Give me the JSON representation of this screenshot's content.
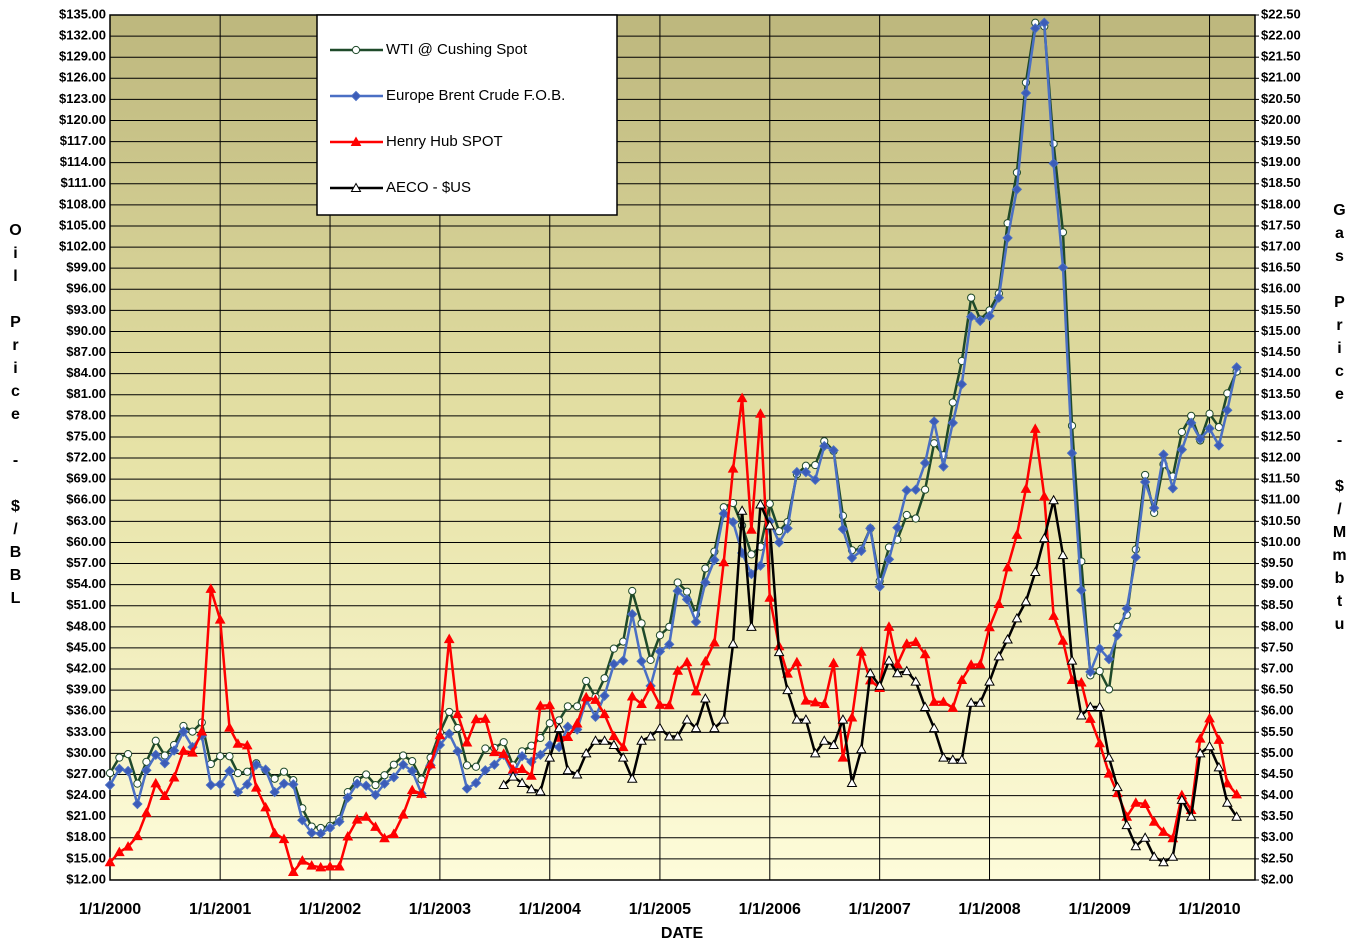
{
  "chart_data": {
    "type": "line",
    "x_label": "DATE",
    "y_label": "Oil Price - $/BBL",
    "y2_label": "Gas Price - $/Mmbtu",
    "xlim": [
      "2000-01-01",
      "2010-06-01"
    ],
    "xticks": [
      {
        "value": "2000-01-01",
        "label": "1/1/2000"
      },
      {
        "value": "2001-01-01",
        "label": "1/1/2001"
      },
      {
        "value": "2002-01-01",
        "label": "1/1/2002"
      },
      {
        "value": "2003-01-01",
        "label": "1/1/2003"
      },
      {
        "value": "2004-01-01",
        "label": "1/1/2004"
      },
      {
        "value": "2005-01-01",
        "label": "1/1/2005"
      },
      {
        "value": "2006-01-01",
        "label": "1/1/2006"
      },
      {
        "value": "2007-01-01",
        "label": "1/1/2007"
      },
      {
        "value": "2008-01-01",
        "label": "1/1/2008"
      },
      {
        "value": "2009-01-01",
        "label": "1/1/2009"
      },
      {
        "value": "2010-01-01",
        "label": "1/1/2010"
      }
    ],
    "ylim": [
      12,
      135
    ],
    "yticks": [
      {
        "value": 12,
        "label": "$12.00"
      },
      {
        "value": 15,
        "label": "$15.00"
      },
      {
        "value": 18,
        "label": "$18.00"
      },
      {
        "value": 21,
        "label": "$21.00"
      },
      {
        "value": 24,
        "label": "$24.00"
      },
      {
        "value": 27,
        "label": "$27.00"
      },
      {
        "value": 30,
        "label": "$30.00"
      },
      {
        "value": 33,
        "label": "$33.00"
      },
      {
        "value": 36,
        "label": "$36.00"
      },
      {
        "value": 39,
        "label": "$39.00"
      },
      {
        "value": 42,
        "label": "$42.00"
      },
      {
        "value": 45,
        "label": "$45.00"
      },
      {
        "value": 48,
        "label": "$48.00"
      },
      {
        "value": 51,
        "label": "$51.00"
      },
      {
        "value": 54,
        "label": "$54.00"
      },
      {
        "value": 57,
        "label": "$57.00"
      },
      {
        "value": 60,
        "label": "$60.00"
      },
      {
        "value": 63,
        "label": "$63.00"
      },
      {
        "value": 66,
        "label": "$66.00"
      },
      {
        "value": 69,
        "label": "$69.00"
      },
      {
        "value": 72,
        "label": "$72.00"
      },
      {
        "value": 75,
        "label": "$75.00"
      },
      {
        "value": 78,
        "label": "$78.00"
      },
      {
        "value": 81,
        "label": "$81.00"
      },
      {
        "value": 84,
        "label": "$84.00"
      },
      {
        "value": 87,
        "label": "$87.00"
      },
      {
        "value": 90,
        "label": "$90.00"
      },
      {
        "value": 93,
        "label": "$93.00"
      },
      {
        "value": 96,
        "label": "$96.00"
      },
      {
        "value": 99,
        "label": "$99.00"
      },
      {
        "value": 102,
        "label": "$102.00"
      },
      {
        "value": 105,
        "label": "$105.00"
      },
      {
        "value": 108,
        "label": "$108.00"
      },
      {
        "value": 111,
        "label": "$111.00"
      },
      {
        "value": 114,
        "label": "$114.00"
      },
      {
        "value": 117,
        "label": "$117.00"
      },
      {
        "value": 120,
        "label": "$120.00"
      },
      {
        "value": 123,
        "label": "$123.00"
      },
      {
        "value": 126,
        "label": "$126.00"
      },
      {
        "value": 129,
        "label": "$129.00"
      },
      {
        "value": 132,
        "label": "$132.00"
      },
      {
        "value": 135,
        "label": "$135.00"
      }
    ],
    "y2lim": [
      2,
      22.5
    ],
    "y2ticks": [
      {
        "value": 2,
        "label": "$2.00"
      },
      {
        "value": 2.5,
        "label": "$2.50"
      },
      {
        "value": 3,
        "label": "$3.00"
      },
      {
        "value": 3.5,
        "label": "$3.50"
      },
      {
        "value": 4,
        "label": "$4.00"
      },
      {
        "value": 4.5,
        "label": "$4.50"
      },
      {
        "value": 5,
        "label": "$5.00"
      },
      {
        "value": 5.5,
        "label": "$5.50"
      },
      {
        "value": 6,
        "label": "$6.00"
      },
      {
        "value": 6.5,
        "label": "$6.50"
      },
      {
        "value": 7,
        "label": "$7.00"
      },
      {
        "value": 7.5,
        "label": "$7.50"
      },
      {
        "value": 8,
        "label": "$8.00"
      },
      {
        "value": 8.5,
        "label": "$8.50"
      },
      {
        "value": 9,
        "label": "$9.00"
      },
      {
        "value": 9.5,
        "label": "$9.50"
      },
      {
        "value": 10,
        "label": "$10.00"
      },
      {
        "value": 10.5,
        "label": "$10.50"
      },
      {
        "value": 11,
        "label": "$11.00"
      },
      {
        "value": 11.5,
        "label": "$11.50"
      },
      {
        "value": 12,
        "label": "$12.00"
      },
      {
        "value": 12.5,
        "label": "$12.50"
      },
      {
        "value": 13,
        "label": "$13.00"
      },
      {
        "value": 13.5,
        "label": "$13.50"
      },
      {
        "value": 14,
        "label": "$14.00"
      },
      {
        "value": 14.5,
        "label": "$14.50"
      },
      {
        "value": 15,
        "label": "$15.00"
      },
      {
        "value": 15.5,
        "label": "$15.50"
      },
      {
        "value": 16,
        "label": "$16.00"
      },
      {
        "value": 16.5,
        "label": "$16.50"
      },
      {
        "value": 17,
        "label": "$17.00"
      },
      {
        "value": 17.5,
        "label": "$17.50"
      },
      {
        "value": 18,
        "label": "$18.00"
      },
      {
        "value": 18.5,
        "label": "$18.50"
      },
      {
        "value": 19,
        "label": "$19.00"
      },
      {
        "value": 19.5,
        "label": "$19.50"
      },
      {
        "value": 20,
        "label": "$20.00"
      },
      {
        "value": 20.5,
        "label": "$20.50"
      },
      {
        "value": 21,
        "label": "$21.00"
      },
      {
        "value": 21.5,
        "label": "$21.50"
      },
      {
        "value": 22,
        "label": "$22.00"
      },
      {
        "value": 22.5,
        "label": "$22.50"
      }
    ],
    "grid": true,
    "x": [
      "2000-01-01",
      "2000-02-01",
      "2000-03-01",
      "2000-04-01",
      "2000-05-01",
      "2000-06-01",
      "2000-07-01",
      "2000-08-01",
      "2000-09-01",
      "2000-10-01",
      "2000-11-01",
      "2000-12-01",
      "2001-01-01",
      "2001-02-01",
      "2001-03-01",
      "2001-04-01",
      "2001-05-01",
      "2001-06-01",
      "2001-07-01",
      "2001-08-01",
      "2001-09-01",
      "2001-10-01",
      "2001-11-01",
      "2001-12-01",
      "2002-01-01",
      "2002-02-01",
      "2002-03-01",
      "2002-04-01",
      "2002-05-01",
      "2002-06-01",
      "2002-07-01",
      "2002-08-01",
      "2002-09-01",
      "2002-10-01",
      "2002-11-01",
      "2002-12-01",
      "2003-01-01",
      "2003-02-01",
      "2003-03-01",
      "2003-04-01",
      "2003-05-01",
      "2003-06-01",
      "2003-07-01",
      "2003-08-01",
      "2003-09-01",
      "2003-10-01",
      "2003-11-01",
      "2003-12-01",
      "2004-01-01",
      "2004-02-01",
      "2004-03-01",
      "2004-04-01",
      "2004-05-01",
      "2004-06-01",
      "2004-07-01",
      "2004-08-01",
      "2004-09-01",
      "2004-10-01",
      "2004-11-01",
      "2004-12-01",
      "2005-01-01",
      "2005-02-01",
      "2005-03-01",
      "2005-04-01",
      "2005-05-01",
      "2005-06-01",
      "2005-07-01",
      "2005-08-01",
      "2005-09-01",
      "2005-10-01",
      "2005-11-01",
      "2005-12-01",
      "2006-01-01",
      "2006-02-01",
      "2006-03-01",
      "2006-04-01",
      "2006-05-01",
      "2006-06-01",
      "2006-07-01",
      "2006-08-01",
      "2006-09-01",
      "2006-10-01",
      "2006-11-01",
      "2006-12-01",
      "2007-01-01",
      "2007-02-01",
      "2007-03-01",
      "2007-04-01",
      "2007-05-01",
      "2007-06-01",
      "2007-07-01",
      "2007-08-01",
      "2007-09-01",
      "2007-10-01",
      "2007-11-01",
      "2007-12-01",
      "2008-01-01",
      "2008-02-01",
      "2008-03-01",
      "2008-04-01",
      "2008-05-01",
      "2008-06-01",
      "2008-07-01",
      "2008-08-01",
      "2008-09-01",
      "2008-10-01",
      "2008-11-01",
      "2008-12-01",
      "2009-01-01",
      "2009-02-01",
      "2009-03-01",
      "2009-04-01",
      "2009-05-01",
      "2009-06-01",
      "2009-07-01",
      "2009-08-01",
      "2009-09-01",
      "2009-10-01",
      "2009-11-01",
      "2009-12-01",
      "2010-01-01",
      "2010-02-01",
      "2010-03-01",
      "2010-04-01"
    ],
    "series": [
      {
        "name": "WTI @ Cushing Spot",
        "color": "#1f4a2a",
        "marker": "circle",
        "marker_fill": "#ffffff",
        "axis": "y",
        "values": [
          27.2,
          29.4,
          29.9,
          25.7,
          28.8,
          31.8,
          29.7,
          31.2,
          33.9,
          33.1,
          34.4,
          28.5,
          29.6,
          29.6,
          27.2,
          27.4,
          28.6,
          27.6,
          26.4,
          27.4,
          26.2,
          22.2,
          19.6,
          19.4,
          19.7,
          20.7,
          24.5,
          26.2,
          27.0,
          25.5,
          26.9,
          28.4,
          29.7,
          28.9,
          26.3,
          29.4,
          33.0,
          35.9,
          33.6,
          28.3,
          28.1,
          30.7,
          30.8,
          31.6,
          28.3,
          30.3,
          31.1,
          32.2,
          34.3,
          34.7,
          36.7,
          36.7,
          40.3,
          38.0,
          40.7,
          44.9,
          45.9,
          53.1,
          48.5,
          43.3,
          46.8,
          48.0,
          54.3,
          53.0,
          49.8,
          56.3,
          58.7,
          65.0,
          65.6,
          62.4,
          58.3,
          59.4,
          65.5,
          61.6,
          62.9,
          69.7,
          70.9,
          71.0,
          74.4,
          73.0,
          63.8,
          58.9,
          59.1,
          62.0,
          54.5,
          59.3,
          60.4,
          63.9,
          63.4,
          67.5,
          74.1,
          72.4,
          79.9,
          85.8,
          94.8,
          91.7,
          93.0,
          95.4,
          105.4,
          112.6,
          125.4,
          133.9,
          133.4,
          116.7,
          104.1,
          76.6,
          57.3,
          41.1,
          41.7,
          39.1,
          48.0,
          49.7,
          59.0,
          69.6,
          64.2,
          71.1,
          69.4,
          75.7,
          78.0,
          74.5,
          78.3,
          76.4,
          81.2,
          84.3
        ]
      },
      {
        "name": "Europe Brent Crude F.O.B.",
        "color": "#4a6fc4",
        "marker": "diamond",
        "marker_fill": "#3c5cb8",
        "axis": "y",
        "values": [
          25.5,
          27.8,
          27.5,
          22.8,
          27.6,
          29.8,
          28.6,
          30.4,
          33.1,
          30.9,
          32.5,
          25.5,
          25.6,
          27.5,
          24.5,
          25.6,
          28.4,
          27.7,
          24.5,
          25.7,
          25.6,
          20.5,
          18.7,
          18.6,
          19.4,
          20.3,
          23.7,
          25.7,
          25.4,
          24.1,
          25.7,
          26.6,
          28.4,
          27.5,
          24.3,
          28.3,
          31.2,
          32.8,
          30.3,
          25.0,
          25.8,
          27.6,
          28.4,
          29.8,
          27.1,
          29.6,
          28.8,
          29.8,
          31.2,
          30.9,
          33.8,
          33.4,
          37.6,
          35.2,
          38.2,
          42.7,
          43.2,
          49.8,
          43.1,
          39.6,
          44.5,
          45.5,
          53.1,
          51.9,
          48.7,
          54.3,
          57.5,
          64.1,
          62.9,
          58.5,
          55.5,
          56.7,
          63.0,
          60.0,
          62.0,
          70.0,
          70.0,
          68.9,
          73.7,
          73.1,
          61.9,
          57.8,
          58.8,
          62.0,
          53.7,
          57.6,
          62.1,
          67.4,
          67.5,
          71.3,
          77.2,
          70.8,
          77.0,
          82.5,
          92.1,
          91.5,
          92.2,
          94.8,
          103.3,
          110.2,
          123.9,
          133.1,
          133.9,
          113.9,
          99.1,
          72.7,
          53.2,
          41.6,
          44.9,
          43.4,
          46.8,
          50.6,
          57.9,
          68.6,
          64.9,
          72.5,
          67.7,
          73.2,
          77.0,
          74.7,
          76.2,
          73.8,
          78.8,
          84.9
        ]
      },
      {
        "name": "Henry Hub SPOT",
        "color": "#ff0000",
        "marker": "triangle",
        "marker_fill": "#ff0000",
        "axis": "y2",
        "values": [
          2.42,
          2.66,
          2.79,
          3.04,
          3.59,
          4.29,
          3.99,
          4.43,
          5.06,
          5.02,
          5.52,
          8.9,
          8.17,
          5.61,
          5.23,
          5.19,
          4.19,
          3.72,
          3.11,
          2.97,
          2.19,
          2.46,
          2.34,
          2.3,
          2.32,
          2.32,
          3.03,
          3.43,
          3.5,
          3.26,
          2.99,
          3.09,
          3.55,
          4.13,
          4.04,
          4.74,
          5.43,
          7.71,
          5.93,
          5.26,
          5.81,
          5.82,
          5.03,
          4.99,
          4.62,
          4.63,
          4.47,
          6.13,
          6.14,
          5.37,
          5.39,
          5.71,
          6.33,
          6.27,
          5.93,
          5.41,
          5.15,
          6.35,
          6.17,
          6.58,
          6.15,
          6.14,
          6.96,
          7.16,
          6.47,
          7.18,
          7.63,
          9.53,
          11.75,
          13.42,
          10.3,
          13.05,
          8.69,
          7.54,
          6.89,
          7.16,
          6.25,
          6.21,
          6.17,
          7.14,
          4.9,
          5.85,
          7.41,
          6.73,
          6.55,
          8.0,
          7.11,
          7.6,
          7.64,
          7.35,
          6.22,
          6.22,
          6.08,
          6.74,
          7.1,
          7.11,
          7.99,
          8.54,
          9.41,
          10.18,
          11.27,
          12.69,
          11.09,
          8.26,
          7.67,
          6.74,
          6.68,
          5.82,
          5.24,
          4.52,
          4.06,
          3.5,
          3.83,
          3.8,
          3.38,
          3.14,
          2.99,
          4.01,
          3.66,
          5.35,
          5.83,
          5.32,
          4.29,
          4.03
        ]
      },
      {
        "name": "AECO - $US",
        "color": "#000000",
        "marker": "triangle",
        "marker_fill": "#ffffff",
        "axis": "y2",
        "values": [
          null,
          null,
          null,
          null,
          null,
          null,
          null,
          null,
          null,
          null,
          null,
          null,
          null,
          null,
          null,
          null,
          null,
          null,
          null,
          null,
          null,
          null,
          null,
          null,
          null,
          null,
          null,
          null,
          null,
          null,
          null,
          null,
          null,
          null,
          null,
          null,
          null,
          null,
          null,
          null,
          null,
          null,
          null,
          4.25,
          4.45,
          4.3,
          4.15,
          4.1,
          4.9,
          5.6,
          4.6,
          4.5,
          5.0,
          5.3,
          5.3,
          5.2,
          4.9,
          4.4,
          5.3,
          5.4,
          5.6,
          5.4,
          5.4,
          5.8,
          5.6,
          6.3,
          5.6,
          5.8,
          7.6,
          10.75,
          8.0,
          10.9,
          10.4,
          7.4,
          6.5,
          5.8,
          5.8,
          5.0,
          5.3,
          5.2,
          5.8,
          4.3,
          5.1,
          6.9,
          6.6,
          7.2,
          6.9,
          6.95,
          6.7,
          6.1,
          5.6,
          4.9,
          4.85,
          4.85,
          6.2,
          6.2,
          6.7,
          7.3,
          7.7,
          8.2,
          8.6,
          9.3,
          10.1,
          11.0,
          9.7,
          7.2,
          5.9,
          6.1,
          6.1,
          4.9,
          4.2,
          3.3,
          2.8,
          3.0,
          2.55,
          2.42,
          2.55,
          3.9,
          3.5,
          5.0,
          5.17,
          4.67,
          3.83,
          3.5
        ]
      }
    ]
  }
}
